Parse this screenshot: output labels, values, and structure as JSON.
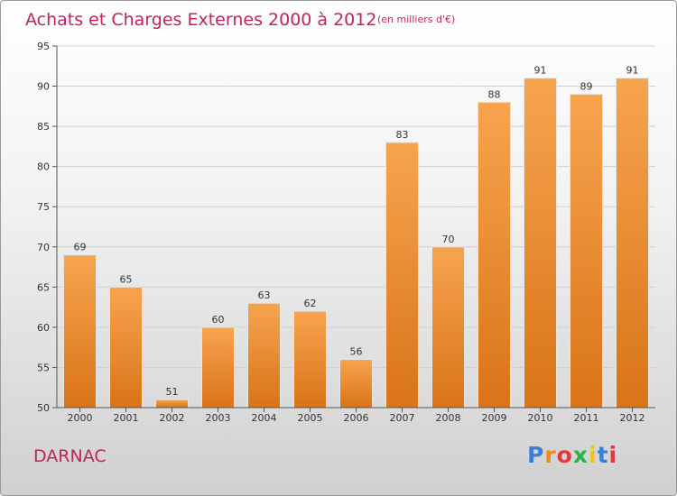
{
  "chart_data": {
    "type": "bar",
    "title": "Achats et Charges Externes 2000 à 2012",
    "subtitle": "(en milliers d'€)",
    "categories": [
      "2000",
      "2001",
      "2002",
      "2003",
      "2004",
      "2005",
      "2006",
      "2007",
      "2008",
      "2009",
      "2010",
      "2011",
      "2012"
    ],
    "values": [
      69,
      65,
      51,
      60,
      63,
      62,
      56,
      83,
      70,
      88,
      91,
      89,
      91
    ],
    "ylim": [
      50,
      95
    ],
    "yticks": [
      50,
      55,
      60,
      65,
      70,
      75,
      80,
      85,
      90,
      95
    ],
    "grid": true,
    "bar_color_top": "#f7a44f",
    "bar_color_bottom": "#d97417"
  },
  "commune": "DARNAC",
  "brand": {
    "letters": [
      "P",
      "r",
      "o",
      "x",
      "i",
      "t",
      "i"
    ],
    "colors": [
      "#3a7fd5",
      "#ef8a1a",
      "#e23a3a",
      "#2bb24c",
      "#f2c21b",
      "#3a7fd5",
      "#e23a3a"
    ]
  },
  "colors": {
    "title": "#c0245c",
    "grid": "#cfcfcf",
    "axis": "#555555"
  }
}
